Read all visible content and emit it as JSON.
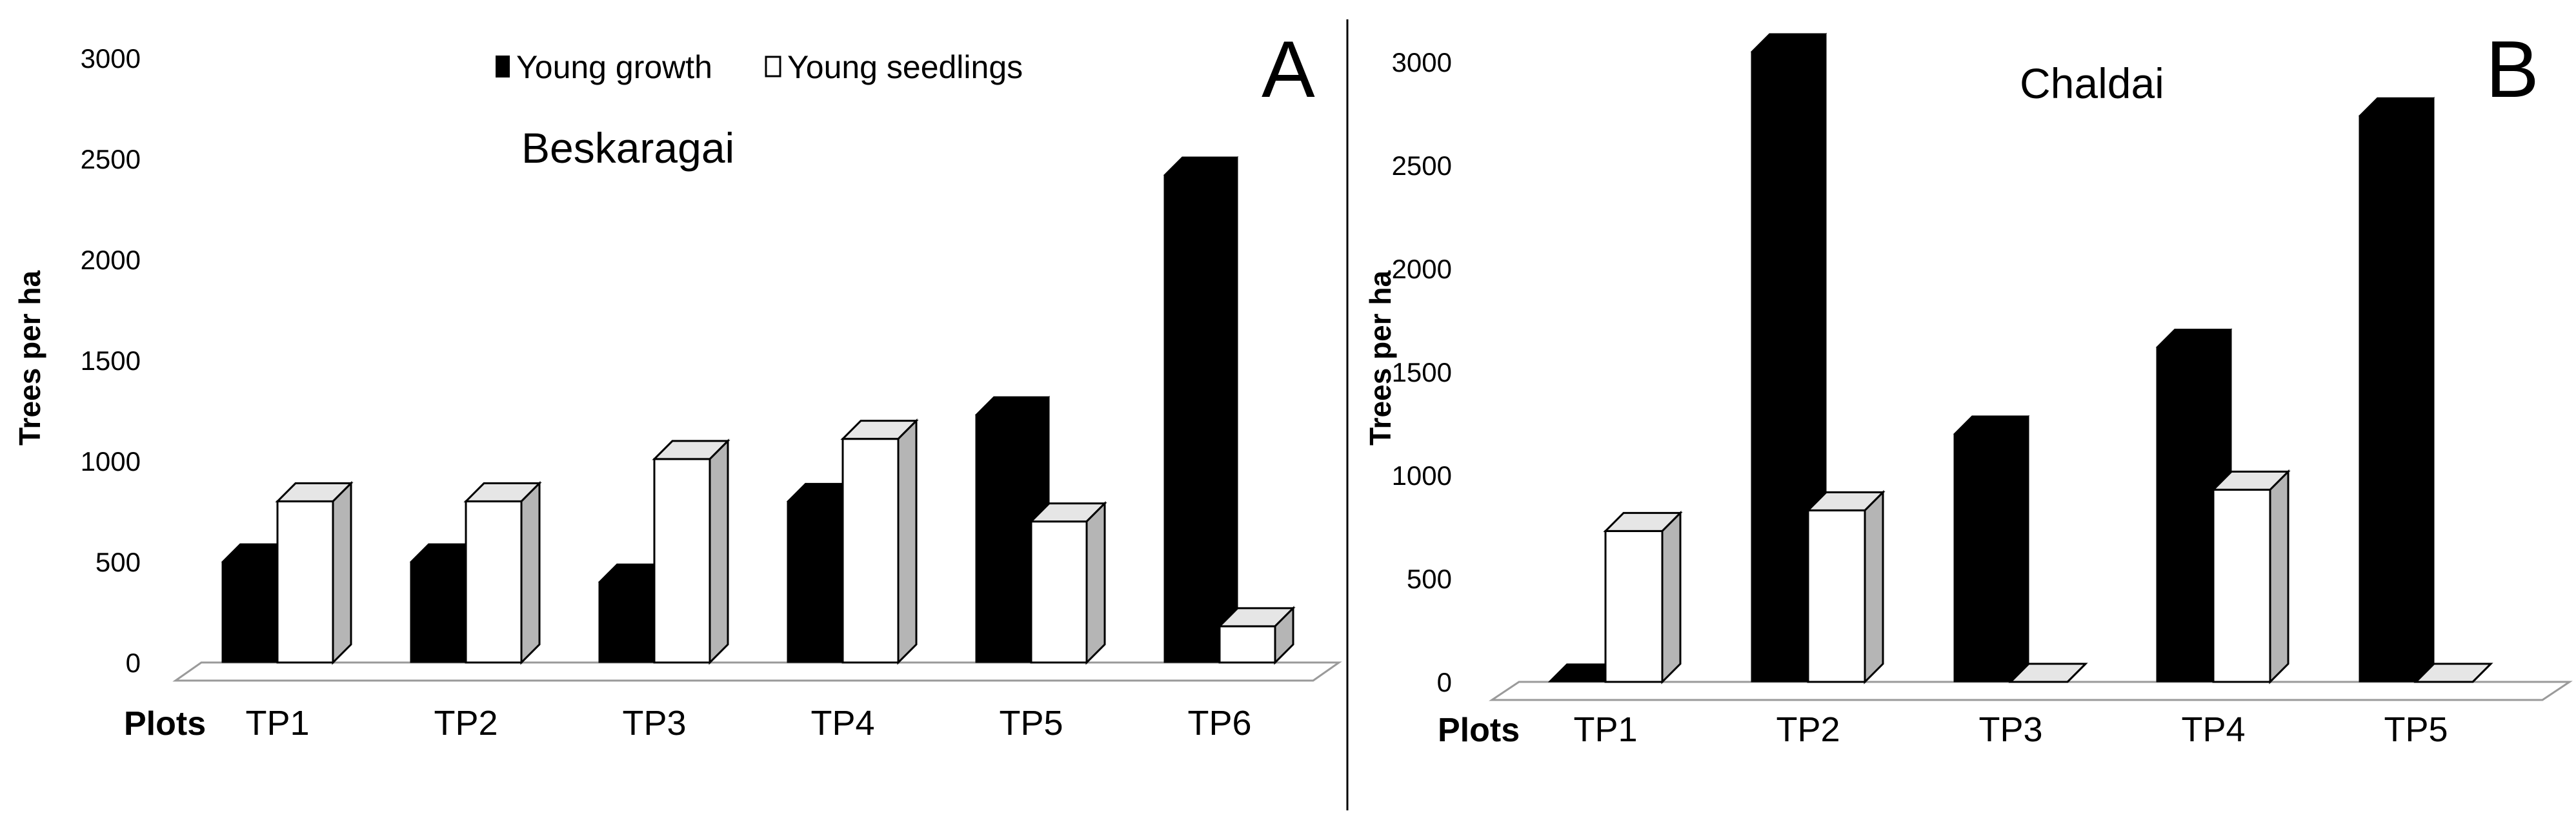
{
  "legend": {
    "young_growth": "Young growth",
    "young_seedlings": "Young seedlings"
  },
  "chart_data": [
    {
      "type": "bar",
      "panel_letter": "A",
      "title": "Beskaragai",
      "ylabel": "Trees per ha",
      "xlabel": "Plots",
      "ylim": [
        0,
        3000
      ],
      "yticks": [
        "0",
        "500",
        "1000",
        "1500",
        "2000",
        "2500",
        "3000"
      ],
      "categories": [
        "TP1",
        "TP2",
        "TP3",
        "TP4",
        "TP5",
        "TP6"
      ],
      "series": [
        {
          "name": "Young growth",
          "color": "#000000",
          "values": [
            500,
            500,
            400,
            800,
            1230,
            2420
          ]
        },
        {
          "name": "Young seedlings",
          "color": "#ffffff",
          "values": [
            800,
            800,
            1010,
            1110,
            700,
            180
          ]
        }
      ]
    },
    {
      "type": "bar",
      "panel_letter": "B",
      "title": "Chaldai",
      "ylabel": "Trees per ha",
      "xlabel": "Plots",
      "ylim": [
        0,
        3000
      ],
      "yticks": [
        "0",
        "500",
        "1000",
        "1500",
        "2000",
        "2500",
        "3000"
      ],
      "categories": [
        "TP1",
        "TP2",
        "TP3",
        "TP4",
        "TP5"
      ],
      "series": [
        {
          "name": "Young growth",
          "color": "#000000",
          "values": [
            0,
            3050,
            1200,
            1620,
            2740
          ]
        },
        {
          "name": "Young seedlings",
          "color": "#ffffff",
          "values": [
            730,
            830,
            0,
            930,
            0
          ]
        }
      ]
    }
  ]
}
